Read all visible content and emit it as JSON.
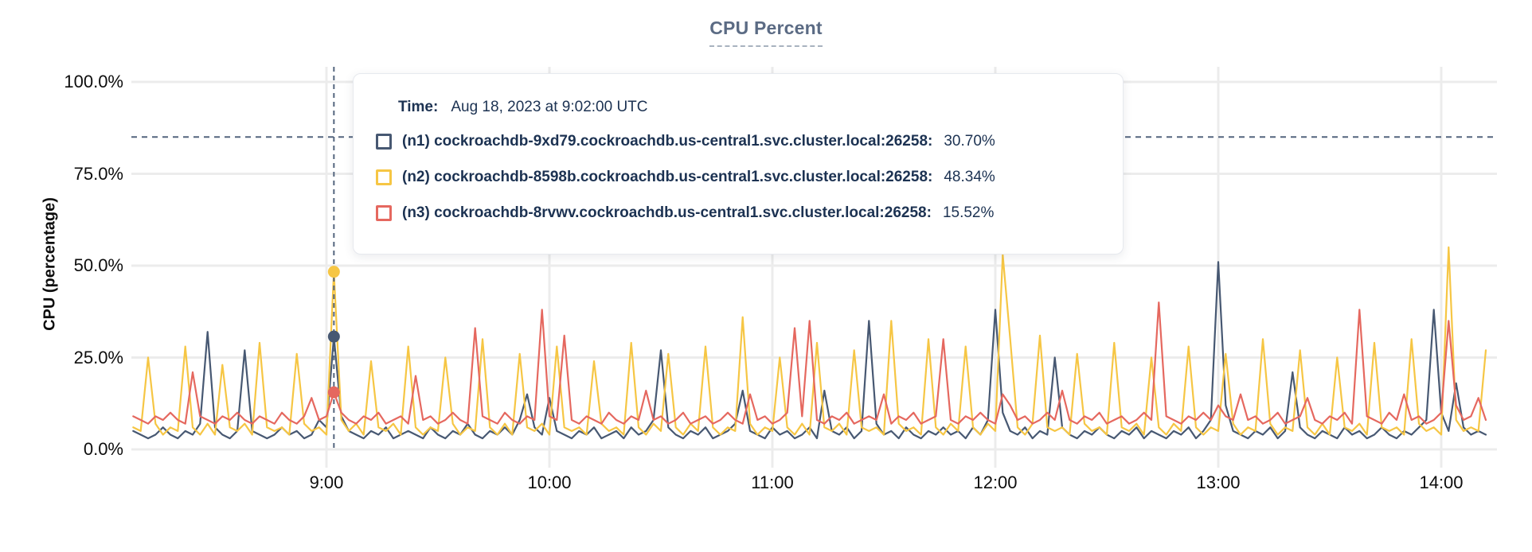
{
  "chart_data": {
    "type": "line",
    "title": "CPU Percent",
    "ylabel": "CPU (percentage)",
    "xlabel": "",
    "ylim": [
      0,
      100
    ],
    "grid": true,
    "legend_position": "tooltip",
    "y_ticks": [
      {
        "label": "100.0%",
        "value": 100
      },
      {
        "label": "75.0%",
        "value": 75
      },
      {
        "label": "50.0%",
        "value": 50
      },
      {
        "label": "25.0%",
        "value": 25
      },
      {
        "label": "0.0%",
        "value": 0
      }
    ],
    "x_ticks": [
      {
        "label": "9:00",
        "minutes": 540
      },
      {
        "label": "10:00",
        "minutes": 600
      },
      {
        "label": "11:00",
        "minutes": 660
      },
      {
        "label": "12:00",
        "minutes": 720
      },
      {
        "label": "13:00",
        "minutes": 780
      },
      {
        "label": "14:00",
        "minutes": 840
      }
    ],
    "x_start_minutes": 488,
    "x_step_minutes": 2,
    "series": [
      {
        "id": "n1",
        "name": "(n1) cockroachdb-9xd79.cockroachdb.us-central1.svc.cluster.local:26258",
        "color": "#475872",
        "values": [
          5,
          4,
          3,
          4,
          6,
          4,
          3,
          5,
          4,
          7,
          32,
          6,
          4,
          3,
          5,
          27,
          5,
          4,
          3,
          4,
          6,
          4,
          5,
          3,
          4,
          8,
          6,
          30.7,
          9,
          5,
          4,
          3,
          5,
          4,
          6,
          3,
          4,
          5,
          4,
          3,
          6,
          4,
          3,
          5,
          4,
          7,
          4,
          3,
          5,
          4,
          6,
          4,
          8,
          15,
          6,
          4,
          14,
          5,
          4,
          3,
          5,
          4,
          6,
          3,
          4,
          5,
          3,
          6,
          4,
          5,
          8,
          27,
          6,
          4,
          3,
          5,
          4,
          6,
          3,
          4,
          5,
          7,
          16,
          5,
          4,
          3,
          6,
          4,
          5,
          3,
          4,
          6,
          3,
          16,
          5,
          4,
          6,
          3,
          5,
          35,
          7,
          4,
          5,
          3,
          6,
          4,
          3,
          5,
          4,
          6,
          4,
          5,
          3,
          6,
          4,
          8,
          38,
          10,
          5,
          4,
          6,
          3,
          5,
          4,
          25,
          6,
          4,
          3,
          5,
          4,
          6,
          4,
          3,
          5,
          4,
          6,
          3,
          5,
          4,
          3,
          5,
          4,
          6,
          3,
          5,
          8,
          51,
          12,
          5,
          4,
          3,
          5,
          4,
          6,
          3,
          5,
          21,
          6,
          4,
          3,
          5,
          4,
          3,
          6,
          4,
          5,
          3,
          4,
          6,
          4,
          3,
          5,
          4,
          6,
          8,
          38,
          10,
          5,
          18,
          6,
          4,
          5,
          4
        ]
      },
      {
        "id": "n2",
        "name": "(n2) cockroachdb-8598b.cockroachdb.us-central1.svc.cluster.local:26258",
        "color": "#F6C644",
        "values": [
          6,
          5,
          25,
          7,
          4,
          6,
          5,
          28,
          6,
          4,
          7,
          4,
          23,
          6,
          5,
          7,
          4,
          29,
          6,
          5,
          6,
          4,
          26,
          7,
          5,
          6,
          4,
          48.3,
          8,
          5,
          7,
          4,
          24,
          6,
          5,
          7,
          4,
          28,
          6,
          4,
          6,
          5,
          25,
          7,
          4,
          6,
          5,
          30,
          6,
          4,
          7,
          4,
          26,
          6,
          5,
          7,
          4,
          28,
          6,
          5,
          6,
          4,
          24,
          7,
          5,
          6,
          4,
          29,
          6,
          4,
          7,
          5,
          26,
          6,
          4,
          7,
          5,
          28,
          6,
          4,
          6,
          5,
          36,
          7,
          4,
          6,
          5,
          25,
          6,
          4,
          7,
          4,
          29,
          6,
          5,
          7,
          4,
          27,
          6,
          5,
          6,
          4,
          35,
          7,
          5,
          6,
          4,
          30,
          6,
          4,
          7,
          5,
          28,
          6,
          4,
          7,
          5,
          53,
          30,
          6,
          4,
          7,
          31,
          6,
          5,
          6,
          4,
          26,
          7,
          5,
          6,
          4,
          29,
          6,
          5,
          7,
          4,
          25,
          6,
          4,
          7,
          5,
          28,
          6,
          4,
          6,
          5,
          26,
          7,
          4,
          6,
          5,
          30,
          7,
          4,
          6,
          5,
          27,
          6,
          4,
          7,
          4,
          25,
          6,
          5,
          7,
          4,
          29,
          6,
          5,
          6,
          4,
          30,
          7,
          5,
          6,
          4,
          55,
          8,
          5,
          6,
          5,
          27
        ]
      },
      {
        "id": "n3",
        "name": "(n3) cockroachdb-8rvwv.cockroachdb.us-central1.svc.cluster.local:26258",
        "color": "#E5685F",
        "values": [
          9,
          8,
          7,
          9,
          8,
          10,
          8,
          7,
          21,
          9,
          8,
          7,
          9,
          8,
          10,
          8,
          7,
          9,
          8,
          7,
          10,
          8,
          7,
          9,
          14,
          8,
          9,
          15.5,
          10,
          8,
          7,
          9,
          8,
          10,
          7,
          8,
          9,
          7,
          20,
          8,
          9,
          7,
          8,
          10,
          8,
          7,
          33,
          9,
          8,
          7,
          10,
          8,
          7,
          9,
          8,
          38,
          9,
          8,
          31,
          8,
          7,
          9,
          8,
          7,
          10,
          8,
          7,
          9,
          8,
          16,
          8,
          9,
          7,
          8,
          10,
          7,
          8,
          9,
          7,
          8,
          10,
          8,
          7,
          15,
          8,
          9,
          7,
          8,
          10,
          33,
          9,
          35,
          8,
          7,
          9,
          8,
          10,
          7,
          8,
          9,
          8,
          15,
          7,
          9,
          8,
          10,
          7,
          8,
          9,
          30,
          8,
          7,
          9,
          8,
          10,
          8,
          7,
          15,
          12,
          8,
          9,
          7,
          8,
          10,
          8,
          16,
          8,
          7,
          9,
          8,
          10,
          7,
          8,
          9,
          7,
          8,
          10,
          8,
          40,
          9,
          8,
          7,
          9,
          8,
          10,
          8,
          12,
          9,
          8,
          15,
          8,
          9,
          7,
          8,
          10,
          7,
          8,
          9,
          14,
          8,
          7,
          9,
          8,
          10,
          7,
          38,
          9,
          8,
          7,
          10,
          8,
          15,
          8,
          9,
          7,
          8,
          10,
          35,
          12,
          8,
          9,
          14,
          8
        ]
      }
    ],
    "hover": {
      "time_minutes": 542,
      "horizontal_guide_value": 85,
      "points": [
        {
          "series": "n1",
          "value": 30.7,
          "color": "#475872"
        },
        {
          "series": "n2",
          "value": 48.34,
          "color": "#F6C644"
        },
        {
          "series": "n3",
          "value": 15.52,
          "color": "#E5685F"
        }
      ]
    }
  },
  "tooltip": {
    "time_label": "Time:",
    "time_value": "Aug 18, 2023 at 9:02:00 UTC",
    "rows": [
      {
        "label": "(n1) cockroachdb-9xd79.cockroachdb.us-central1.svc.cluster.local:26258:",
        "value": "30.70%",
        "color": "#475872"
      },
      {
        "label": "(n2) cockroachdb-8598b.cockroachdb.us-central1.svc.cluster.local:26258:",
        "value": "48.34%",
        "color": "#F6C644"
      },
      {
        "label": "(n3) cockroachdb-8rvwv.cockroachdb.us-central1.svc.cluster.local:26258:",
        "value": "15.52%",
        "color": "#E5685F"
      }
    ]
  },
  "colors": {
    "grid": "#ECECEC",
    "crosshair": "#54657E",
    "title": "#5B6B84",
    "tooltip_text": "#1C3252"
  }
}
